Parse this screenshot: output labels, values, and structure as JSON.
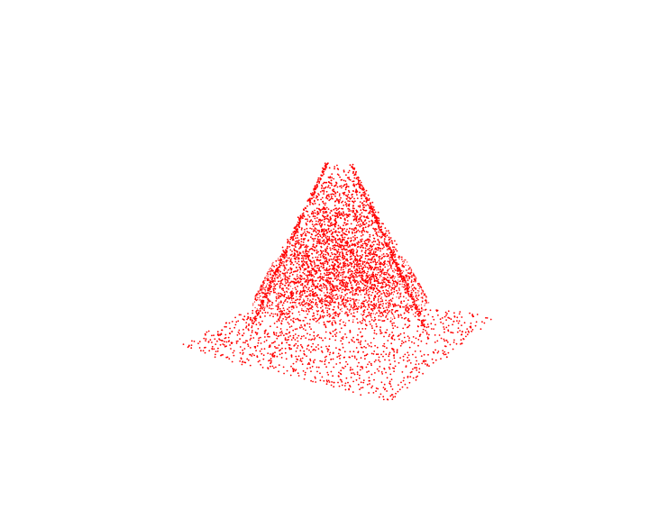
{
  "scene": {
    "background_color": "#ffffff",
    "point_color": "#ff0000",
    "shape": "conical peak rising from a flat square base, rendered as a scattered point cloud"
  }
}
